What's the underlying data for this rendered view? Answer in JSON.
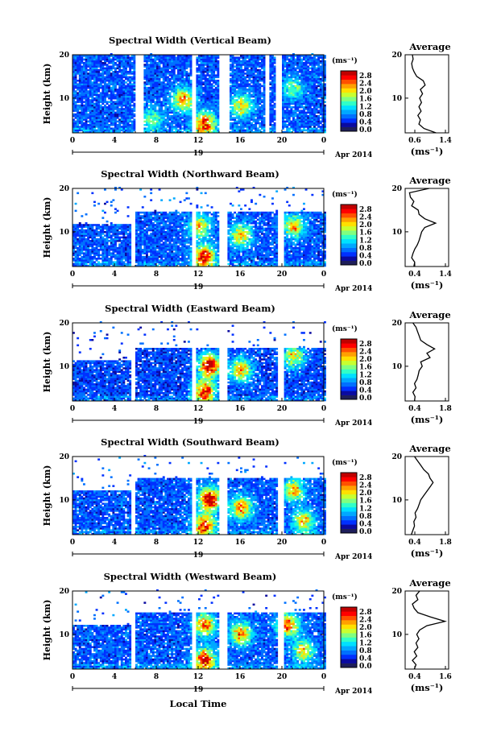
{
  "figure": {
    "xlabel": "Local Time",
    "date_label": "Apr 2014",
    "day_label": "19",
    "colorbar_unit": "(ms⁻¹)",
    "average_title": "Average",
    "average_xlabel": "(ms⁻¹)",
    "colorbar_colors": [
      "#1e1e5a",
      "#0a0aa0",
      "#0030ff",
      "#0070ff",
      "#00a8ff",
      "#00e0ff",
      "#30ffc8",
      "#80ff80",
      "#c8ff30",
      "#ffe000",
      "#ffa000",
      "#ff5000",
      "#ff0000",
      "#c00000"
    ]
  },
  "chart_data": [
    {
      "type": "heatmap",
      "title": "Spectral Width (Vertical Beam)",
      "ylabel": "Height (km)",
      "x_ticks": [
        "0",
        "4",
        "8",
        "12",
        "16",
        "20",
        "0"
      ],
      "y_ticks": [
        "20",
        "10"
      ],
      "ylim": [
        2,
        20
      ],
      "colorbar_ticks": [
        "2.8",
        "2.4",
        "2.0",
        "1.6",
        "1.2",
        "0.8",
        "0.4",
        "0.0"
      ],
      "hotspots": [
        [
          12.5,
          4,
          2.2
        ],
        [
          10.5,
          9.5,
          1.8
        ],
        [
          16,
          8,
          1.5
        ],
        [
          7.5,
          5,
          1.0
        ],
        [
          21,
          12,
          1.0
        ]
      ],
      "base_level": 0.55,
      "top_km": 19.8,
      "gaps": [
        [
          6.0,
          6.8
        ],
        [
          11.2,
          11.7
        ],
        [
          13.8,
          14.8
        ],
        [
          18.2,
          18.7
        ],
        [
          19.3,
          19.8
        ]
      ],
      "average": {
        "xlim": [
          0.2,
          1.4
        ],
        "x_ticks": [
          "0.6",
          "1.4"
        ],
        "y_ticks": [
          "20",
          "10"
        ],
        "heights": [
          2,
          3,
          4,
          5,
          6,
          7,
          8,
          9,
          10,
          11,
          12,
          13,
          14,
          15,
          16,
          17,
          18,
          19,
          20
        ],
        "values": [
          1.05,
          0.72,
          0.58,
          0.62,
          0.55,
          0.64,
          0.58,
          0.65,
          0.6,
          0.68,
          0.62,
          0.75,
          0.7,
          0.52,
          0.45,
          0.4,
          0.38,
          0.42,
          0.4
        ]
      }
    },
    {
      "type": "heatmap",
      "title": "Spectral Width (Northward Beam)",
      "ylabel": "Height (km)",
      "x_ticks": [
        "0",
        "4",
        "8",
        "12",
        "16",
        "20",
        "0"
      ],
      "y_ticks": [
        "20",
        "10"
      ],
      "ylim": [
        2,
        20
      ],
      "colorbar_ticks": [
        "2.8",
        "2.4",
        "2.0",
        "1.6",
        "1.2",
        "0.8",
        "0.4",
        "0.0"
      ],
      "hotspots": [
        [
          12.5,
          4,
          2.4
        ],
        [
          12,
          11,
          1.5
        ],
        [
          16,
          9,
          1.5
        ],
        [
          21,
          11,
          1.6
        ]
      ],
      "base_level": 0.55,
      "top_km": 14.5,
      "gaps": [
        [
          5.6,
          6.0
        ],
        [
          11.2,
          11.6
        ],
        [
          13.8,
          14.6
        ],
        [
          19.4,
          20.0
        ]
      ],
      "average": {
        "xlim": [
          0.4,
          1.4
        ],
        "x_ticks": [
          "0.4",
          "1.4"
        ],
        "y_ticks": [
          "20",
          "10"
        ],
        "heights": [
          2,
          3,
          4,
          5,
          6,
          7,
          8,
          9,
          10,
          11,
          12,
          13,
          14,
          15,
          16,
          17,
          18,
          19,
          20
        ],
        "values": [
          0.6,
          0.62,
          0.55,
          0.58,
          0.62,
          0.68,
          0.72,
          0.75,
          0.78,
          0.85,
          1.1,
          0.85,
          0.72,
          0.7,
          0.55,
          0.6,
          0.52,
          0.5,
          0.95
        ]
      }
    },
    {
      "type": "heatmap",
      "title": "Spectral Width (Eastward Beam)",
      "ylabel": "Height (km)",
      "x_ticks": [
        "0",
        "4",
        "8",
        "12",
        "16",
        "20",
        "0"
      ],
      "y_ticks": [
        "20",
        "10"
      ],
      "ylim": [
        2,
        20
      ],
      "colorbar_ticks": [
        "2.8",
        "2.4",
        "2.0",
        "1.6",
        "1.2",
        "0.8",
        "0.4",
        "0.0"
      ],
      "hotspots": [
        [
          13,
          10,
          2.6
        ],
        [
          12.5,
          4,
          2.3
        ],
        [
          16,
          9,
          1.8
        ],
        [
          21,
          12,
          1.5
        ]
      ],
      "base_level": 0.5,
      "top_km": 14.0,
      "gaps": [
        [
          5.5,
          6.0
        ],
        [
          11.2,
          11.6
        ],
        [
          13.8,
          14.6
        ],
        [
          19.4,
          20.0
        ]
      ],
      "average": {
        "xlim": [
          0.4,
          1.8
        ],
        "x_ticks": [
          "0.4",
          "1.8"
        ],
        "y_ticks": [
          "20",
          "10"
        ],
        "heights": [
          2,
          3,
          4,
          5,
          6,
          7,
          8,
          9,
          10,
          11,
          12,
          13,
          14,
          15,
          16,
          17,
          18,
          19,
          20
        ],
        "values": [
          0.7,
          0.72,
          0.65,
          0.75,
          0.7,
          0.78,
          0.82,
          0.85,
          0.95,
          0.9,
          1.2,
          1.1,
          1.35,
          1.1,
          0.9,
          0.85,
          0.8,
          0.75,
          0.65
        ]
      }
    },
    {
      "type": "heatmap",
      "title": "Spectral Width (Southward Beam)",
      "ylabel": "Height (km)",
      "x_ticks": [
        "0",
        "4",
        "8",
        "12",
        "16",
        "20",
        "0"
      ],
      "y_ticks": [
        "20",
        "10"
      ],
      "ylim": [
        2,
        20
      ],
      "colorbar_ticks": [
        "2.8",
        "2.4",
        "2.0",
        "1.6",
        "1.2",
        "0.8",
        "0.4",
        "0.0"
      ],
      "hotspots": [
        [
          13,
          10,
          2.6
        ],
        [
          12.5,
          4,
          2.2
        ],
        [
          16,
          8,
          1.8
        ],
        [
          21,
          12,
          1.6
        ],
        [
          22,
          5,
          1.5
        ]
      ],
      "base_level": 0.55,
      "top_km": 15.0,
      "gaps": [
        [
          5.6,
          6.0
        ],
        [
          11.2,
          11.6
        ],
        [
          13.8,
          14.6
        ],
        [
          19.4,
          20.0
        ]
      ],
      "average": {
        "xlim": [
          0.4,
          1.8
        ],
        "x_ticks": [
          "0.4",
          "1.8"
        ],
        "y_ticks": [
          "20",
          "10"
        ],
        "heights": [
          2,
          3,
          4,
          5,
          6,
          7,
          8,
          9,
          10,
          11,
          12,
          13,
          14,
          15,
          16,
          17,
          18,
          19,
          20
        ],
        "values": [
          0.6,
          0.65,
          0.7,
          0.68,
          0.75,
          0.72,
          0.8,
          0.85,
          0.9,
          1.0,
          1.1,
          1.2,
          1.3,
          1.2,
          1.15,
          1.0,
          0.9,
          0.8,
          0.7
        ]
      }
    },
    {
      "type": "heatmap",
      "title": "Spectral Width (Westward Beam)",
      "ylabel": "Height (km)",
      "x_ticks": [
        "0",
        "4",
        "8",
        "12",
        "16",
        "20",
        "0"
      ],
      "y_ticks": [
        "20",
        "10"
      ],
      "ylim": [
        2,
        20
      ],
      "colorbar_ticks": [
        "2.8",
        "2.4",
        "2.0",
        "1.6",
        "1.2",
        "0.8",
        "0.4",
        "0.0"
      ],
      "hotspots": [
        [
          12.5,
          4,
          2.3
        ],
        [
          12.5,
          12,
          1.8
        ],
        [
          16,
          10,
          1.8
        ],
        [
          20.5,
          12,
          2.0
        ],
        [
          22,
          6,
          1.5
        ]
      ],
      "base_level": 0.55,
      "top_km": 15.0,
      "gaps": [
        [
          5.6,
          6.0
        ],
        [
          11.2,
          11.6
        ],
        [
          13.8,
          14.6
        ],
        [
          19.4,
          20.0
        ]
      ],
      "average": {
        "xlim": [
          0.4,
          1.6
        ],
        "x_ticks": [
          "0.4",
          "1.6"
        ],
        "y_ticks": [
          "20",
          "10"
        ],
        "heights": [
          2,
          3,
          4,
          5,
          6,
          7,
          8,
          9,
          10,
          11,
          12,
          13,
          14,
          15,
          16,
          17,
          18,
          19,
          20
        ],
        "values": [
          0.65,
          0.7,
          0.6,
          0.72,
          0.65,
          0.75,
          0.7,
          0.78,
          0.72,
          0.8,
          1.0,
          1.5,
          1.1,
          0.75,
          0.65,
          0.6,
          0.75,
          0.7,
          0.8
        ]
      }
    }
  ]
}
